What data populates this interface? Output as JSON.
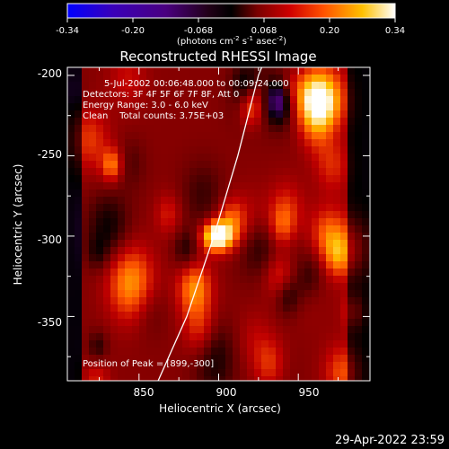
{
  "colorbar": {
    "ticks": [
      "-0.34",
      "-0.20",
      "-0.068",
      "0.068",
      "0.20",
      "0.34"
    ],
    "unit_text": "(photons cm",
    "unit_sup1": "-2",
    "unit_mid": " s",
    "unit_sup2": "-1",
    "unit_end": " asec",
    "unit_sup3": "-2",
    "unit_close": ")"
  },
  "chart_data": {
    "type": "heatmap",
    "title": "Reconstructed RHESSI Image",
    "xlabel": "Heliocentric X (arcsec)",
    "ylabel": "Heliocentric Y (arcsec)",
    "xlim": [
      805,
      995
    ],
    "ylim": [
      -390,
      -195
    ],
    "x_ticks": [
      850,
      900,
      950
    ],
    "y_ticks": [
      -200,
      -250,
      -300,
      -350
    ],
    "colormap": [
      "#0000ff",
      "#3a00a0",
      "#45006a",
      "#000000",
      "#6a0000",
      "#c00000",
      "#ff5a00",
      "#ffc000",
      "#ffffff"
    ],
    "color_range": [
      -0.34,
      0.34
    ],
    "peak": [
      899,
      -300
    ],
    "limb_curve": [
      [
        862,
        -390
      ],
      [
        880,
        -350
      ],
      [
        897,
        -300
      ],
      [
        912,
        -250
      ],
      [
        925,
        -200
      ],
      [
        927,
        -195
      ]
    ],
    "annotations": [
      "5-Jul-2002 00:06:48.000 to 00:09:24.000",
      "Detectors: 3F 4F 5F 6F 7F 8F, Att 0",
      "Energy Range: 3.0 - 6.0 keV",
      "Clean    Total counts: 3.75E+03"
    ],
    "peak_label": "Position of Peak = [899,-300]"
  },
  "footer": {
    "timestamp": "29-Apr-2022 23:59"
  }
}
